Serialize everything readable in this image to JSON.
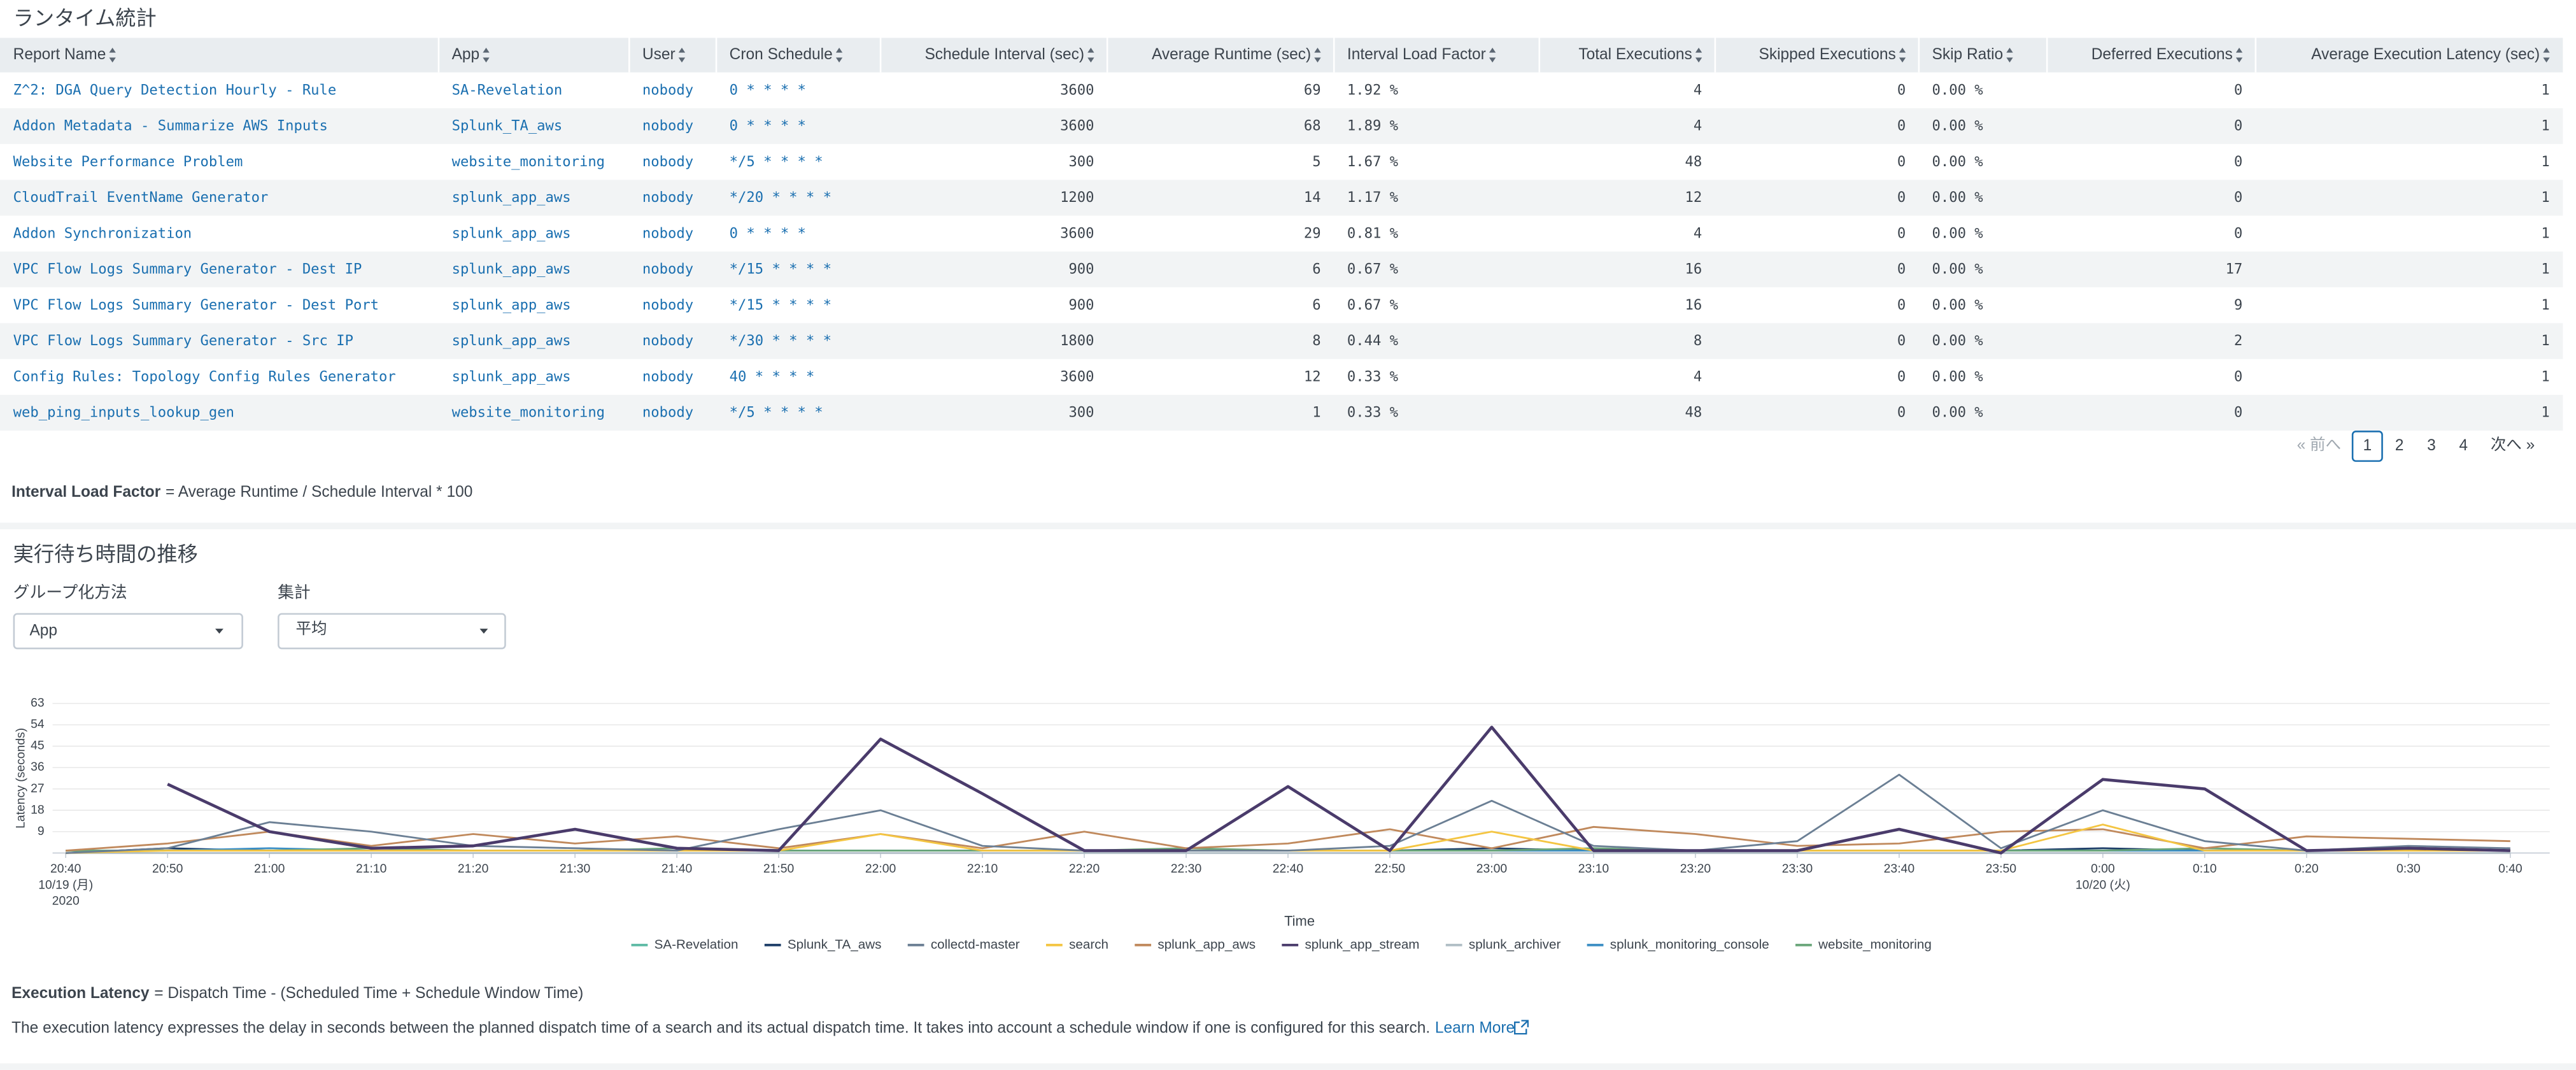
{
  "header": {
    "title": "ランタイム統計"
  },
  "table": {
    "columns": [
      "Report Name",
      "App",
      "User",
      "Cron Schedule",
      "Schedule Interval (sec)",
      "Average Runtime (sec)",
      "Interval Load Factor",
      "Total Executions",
      "Skipped Executions",
      "Skip Ratio",
      "Deferred Executions",
      "Average Execution Latency (sec)"
    ],
    "rows": [
      [
        "Z^2: DGA Query Detection Hourly - Rule",
        "SA-Revelation",
        "nobody",
        "0 * * * *",
        3600,
        69,
        "1.92 %",
        4,
        0,
        "0.00 %",
        0,
        1
      ],
      [
        "Addon Metadata - Summarize AWS Inputs",
        "Splunk_TA_aws",
        "nobody",
        "0 * * * *",
        3600,
        68,
        "1.89 %",
        4,
        0,
        "0.00 %",
        0,
        1
      ],
      [
        "Website Performance Problem",
        "website_monitoring",
        "nobody",
        "*/5 * * * *",
        300,
        5,
        "1.67 %",
        48,
        0,
        "0.00 %",
        0,
        1
      ],
      [
        "CloudTrail EventName Generator",
        "splunk_app_aws",
        "nobody",
        "*/20 * * * *",
        1200,
        14,
        "1.17 %",
        12,
        0,
        "0.00 %",
        0,
        1
      ],
      [
        "Addon Synchronization",
        "splunk_app_aws",
        "nobody",
        "0 * * * *",
        3600,
        29,
        "0.81 %",
        4,
        0,
        "0.00 %",
        0,
        1
      ],
      [
        "VPC Flow Logs Summary Generator - Dest IP",
        "splunk_app_aws",
        "nobody",
        "*/15 * * * *",
        900,
        6,
        "0.67 %",
        16,
        0,
        "0.00 %",
        17,
        1
      ],
      [
        "VPC Flow Logs Summary Generator - Dest Port",
        "splunk_app_aws",
        "nobody",
        "*/15 * * * *",
        900,
        6,
        "0.67 %",
        16,
        0,
        "0.00 %",
        9,
        1
      ],
      [
        "VPC Flow Logs Summary Generator - Src IP",
        "splunk_app_aws",
        "nobody",
        "*/30 * * * *",
        1800,
        8,
        "0.44 %",
        8,
        0,
        "0.00 %",
        2,
        1
      ],
      [
        "Config Rules: Topology Config Rules Generator",
        "splunk_app_aws",
        "nobody",
        "40 * * * *",
        3600,
        12,
        "0.33 %",
        4,
        0,
        "0.00 %",
        0,
        1
      ],
      [
        "web_ping_inputs_lookup_gen",
        "website_monitoring",
        "nobody",
        "*/5 * * * *",
        300,
        1,
        "0.33 %",
        48,
        0,
        "0.00 %",
        0,
        1
      ]
    ]
  },
  "pagination": {
    "prev": "« 前へ",
    "pages": [
      1,
      2,
      3,
      4
    ],
    "next": "次へ »"
  },
  "formula": {
    "term": "Interval Load Factor",
    "definition": "= Average Runtime / Schedule Interval * 100"
  },
  "latency_section": {
    "title": "実行待ち時間の推移",
    "group_by": {
      "label": "グループ化方法",
      "value": "App"
    },
    "aggregation": {
      "label": "集計",
      "value": "平均"
    }
  },
  "chart_data": {
    "type": "line",
    "ylabel": "Latency (seconds)",
    "xlabel": "Time",
    "categories": [
      "20:40\n10/19 (月)\n2020",
      "20:50",
      "21:00",
      "21:10",
      "21:20",
      "21:30",
      "21:40",
      "21:50",
      "22:00",
      "22:10",
      "22:20",
      "22:30",
      "22:40",
      "22:50",
      "23:00",
      "23:10",
      "23:20",
      "23:30",
      "23:40",
      "23:50",
      "0:00\n10/20 (火)",
      "0:10",
      "0:20",
      "0:30",
      "0:40"
    ],
    "ylim": [
      0,
      63
    ],
    "yticks": [
      9,
      18,
      27,
      36,
      45,
      54,
      63
    ],
    "grid": true,
    "legend": "bottom",
    "series": [
      {
        "name": "SA-Revelation",
        "color": "#5dbaa4",
        "values": [
          1,
          1,
          1,
          1,
          1,
          1,
          1,
          1,
          1,
          1,
          1,
          1,
          1,
          1,
          1,
          1,
          1,
          1,
          1,
          1,
          1,
          1,
          1,
          1,
          1
        ]
      },
      {
        "name": "Splunk_TA_aws",
        "color": "#1d3e68",
        "values": [
          0,
          2,
          1,
          1,
          1,
          1,
          1,
          1,
          1,
          1,
          1,
          1,
          1,
          1,
          2,
          1,
          1,
          1,
          1,
          1,
          2,
          1,
          1,
          1,
          1
        ]
      },
      {
        "name": "collectd-master",
        "color": "#6b7f94",
        "values": [
          0,
          2,
          13,
          9,
          3,
          2,
          1,
          10,
          18,
          3,
          1,
          1,
          1,
          3,
          22,
          3,
          1,
          5,
          33,
          2,
          18,
          5,
          1,
          3,
          2
        ]
      },
      {
        "name": "search",
        "color": "#f4c542",
        "values": [
          0,
          1,
          1,
          1,
          1,
          1,
          1,
          1,
          8,
          1,
          1,
          1,
          1,
          1,
          9,
          1,
          1,
          1,
          1,
          1,
          12,
          1,
          1,
          1,
          1
        ]
      },
      {
        "name": "splunk_app_aws",
        "color": "#c0895c",
        "values": [
          1,
          4,
          9,
          3,
          8,
          4,
          7,
          2,
          8,
          2,
          9,
          2,
          4,
          10,
          2,
          11,
          8,
          3,
          4,
          9,
          10,
          2,
          7,
          6,
          5
        ]
      },
      {
        "name": "splunk_app_stream",
        "color": "#4a3b6b",
        "values": [
          null,
          29,
          9,
          2,
          3,
          10,
          2,
          1,
          48,
          25,
          1,
          1,
          28,
          1,
          53,
          1,
          1,
          1,
          10,
          0,
          31,
          27,
          1,
          2,
          1
        ]
      },
      {
        "name": "splunk_archiver",
        "color": "#b0bec5",
        "values": [
          0,
          0,
          0,
          0,
          0,
          0,
          0,
          0,
          0,
          0,
          0,
          0,
          0,
          0,
          0,
          0,
          0,
          0,
          0,
          0,
          0,
          0,
          0,
          0,
          0
        ]
      },
      {
        "name": "splunk_monitoring_console",
        "color": "#3d8fc4",
        "values": [
          1,
          1,
          2,
          1,
          1,
          1,
          1,
          1,
          1,
          1,
          1,
          1,
          1,
          1,
          1,
          1,
          1,
          1,
          1,
          1,
          1,
          1,
          1,
          2,
          1
        ]
      },
      {
        "name": "website_monitoring",
        "color": "#6aa67a",
        "values": [
          1,
          1,
          1,
          2,
          1,
          1,
          2,
          1,
          1,
          1,
          1,
          2,
          1,
          1,
          1,
          2,
          1,
          1,
          1,
          1,
          1,
          2,
          1,
          1,
          1
        ]
      }
    ]
  },
  "footer": {
    "term": "Execution Latency",
    "definition": "= Dispatch Time - (Scheduled Time + Schedule Window Time)",
    "description": "The execution latency expresses the delay in seconds between the planned dispatch time of a search and its actual dispatch time. It takes into account a schedule window if one is configured for this search.",
    "link": "Learn More"
  }
}
